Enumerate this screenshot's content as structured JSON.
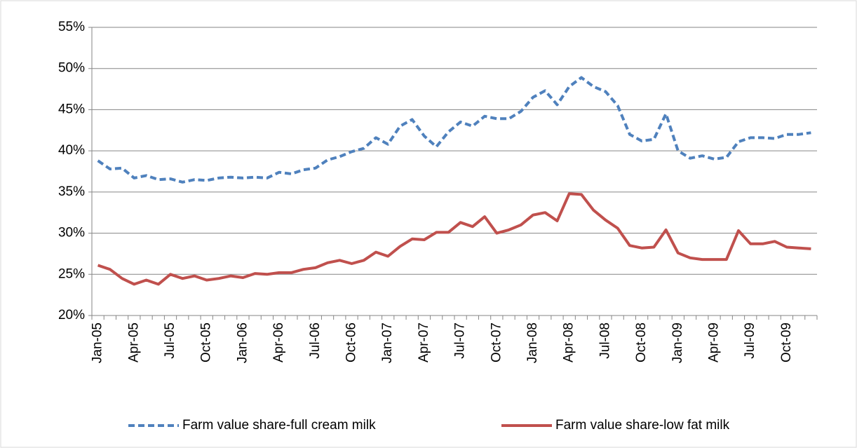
{
  "chart_data": {
    "type": "line",
    "categories": [
      "Jan-05",
      null,
      null,
      "Apr-05",
      null,
      null,
      "Jul-05",
      null,
      null,
      "Oct-05",
      null,
      null,
      "Jan-06",
      null,
      null,
      "Apr-06",
      null,
      null,
      "Jul-06",
      null,
      null,
      "Oct-06",
      null,
      null,
      "Jan-07",
      null,
      null,
      "Apr-07",
      null,
      null,
      "Jul-07",
      null,
      null,
      "Oct-07",
      null,
      null,
      "Jan-08",
      null,
      null,
      "Apr-08",
      null,
      null,
      "Jul-08",
      null,
      null,
      "Oct-08",
      null,
      null,
      "Jan-09",
      null,
      null,
      "Apr-09",
      null,
      null,
      "Jul-09",
      null,
      null,
      "Oct-09",
      null,
      null
    ],
    "series": [
      {
        "name": "Farm value share-full cream milk",
        "color": "#4f81bd",
        "dashed": true,
        "values": [
          38.8,
          37.8,
          37.9,
          36.7,
          37.0,
          36.5,
          36.6,
          36.2,
          36.5,
          36.4,
          36.7,
          36.8,
          36.7,
          36.8,
          36.7,
          37.4,
          37.2,
          37.7,
          37.9,
          38.9,
          39.3,
          39.9,
          40.3,
          41.6,
          40.8,
          43.0,
          43.8,
          41.8,
          40.5,
          42.3,
          43.5,
          43.0,
          44.2,
          43.9,
          43.9,
          44.8,
          46.5,
          47.3,
          45.6,
          47.8,
          48.9,
          47.8,
          47.2,
          45.5,
          42.0,
          41.2,
          41.4,
          44.5,
          40.0,
          39.1,
          39.4,
          39.0,
          39.2,
          41.1,
          41.6,
          41.6,
          41.5,
          42.0,
          42.0,
          42.2
        ]
      },
      {
        "name": "Farm value share-low fat milk",
        "color": "#c0504d",
        "dashed": false,
        "values": [
          26.1,
          25.6,
          24.5,
          23.8,
          24.3,
          23.8,
          25.0,
          24.5,
          24.8,
          24.3,
          24.5,
          24.8,
          24.6,
          25.1,
          25.0,
          25.2,
          25.2,
          25.6,
          25.8,
          26.4,
          26.7,
          26.3,
          26.7,
          27.7,
          27.2,
          28.4,
          29.3,
          29.2,
          30.1,
          30.1,
          31.3,
          30.8,
          32.0,
          30.0,
          30.4,
          31.0,
          32.2,
          32.5,
          31.5,
          34.8,
          34.7,
          32.8,
          31.6,
          30.6,
          28.5,
          28.2,
          28.3,
          30.4,
          27.6,
          27.0,
          26.8,
          26.8,
          26.8,
          30.3,
          28.7,
          28.7,
          29.0,
          28.3,
          28.2,
          28.1
        ]
      }
    ],
    "ylim": [
      20,
      55
    ],
    "yticks": [
      {
        "value": 20,
        "label": "20%"
      },
      {
        "value": 25,
        "label": "25%"
      },
      {
        "value": 30,
        "label": "30%"
      },
      {
        "value": 35,
        "label": "35%"
      },
      {
        "value": 40,
        "label": "40%"
      },
      {
        "value": 45,
        "label": "45%"
      },
      {
        "value": 50,
        "label": "50%"
      },
      {
        "value": 55,
        "label": "55%"
      }
    ],
    "grid": true,
    "legend": "bottom"
  }
}
